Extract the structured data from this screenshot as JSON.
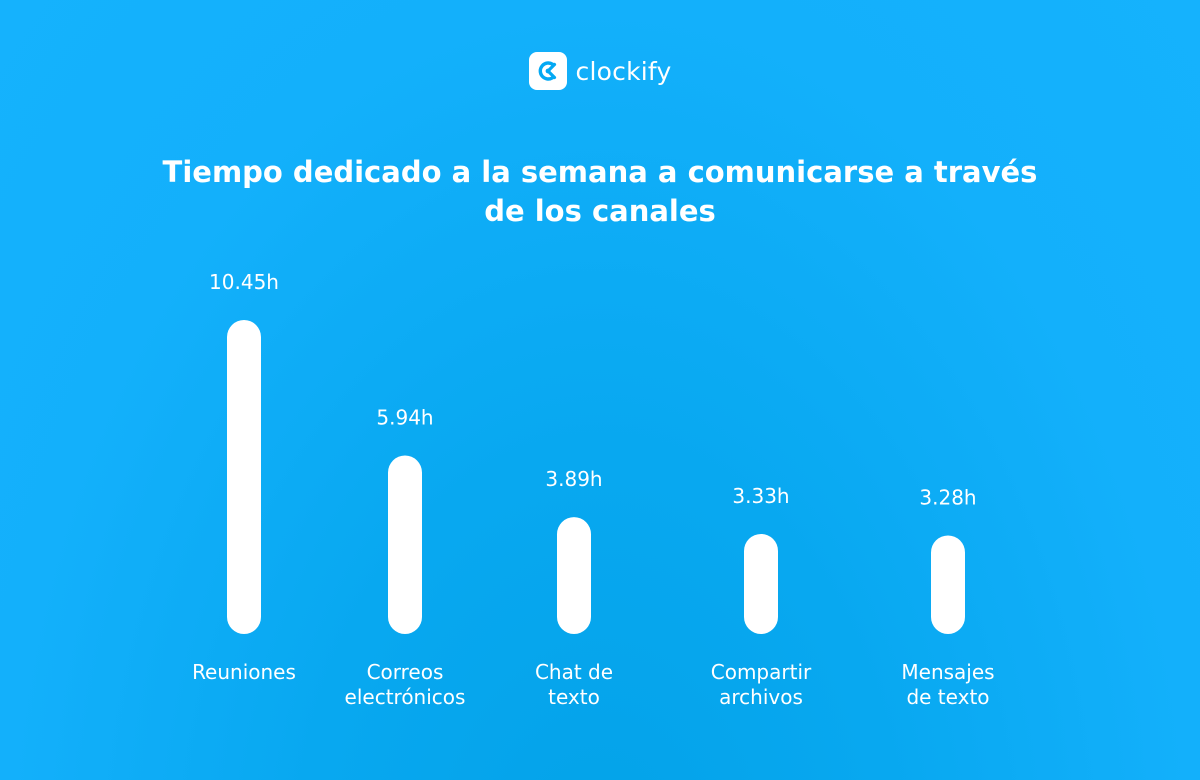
{
  "brand": {
    "name": "clockify",
    "logo_icon": "clockify-logo-icon"
  },
  "colors": {
    "background": "#15b2fd",
    "bars": "#ffffff",
    "text": "#ffffff"
  },
  "chart_data": {
    "type": "bar",
    "title": "Tiempo dedicado a la semana a comunicarse a través de los canales",
    "categories": [
      [
        "Reuniones"
      ],
      [
        "Correos",
        "electrónicos"
      ],
      [
        "Chat de",
        "texto"
      ],
      [
        "Compartir",
        "archivos"
      ],
      [
        "Mensajes",
        "de texto"
      ]
    ],
    "values": [
      10.45,
      5.94,
      3.89,
      3.33,
      3.28
    ],
    "value_labels": [
      "10.45h",
      "5.94h",
      "3.89h",
      "3.33h",
      "3.28h"
    ],
    "unit": "h",
    "axes_visible": false,
    "grid": false,
    "legend": "none"
  }
}
